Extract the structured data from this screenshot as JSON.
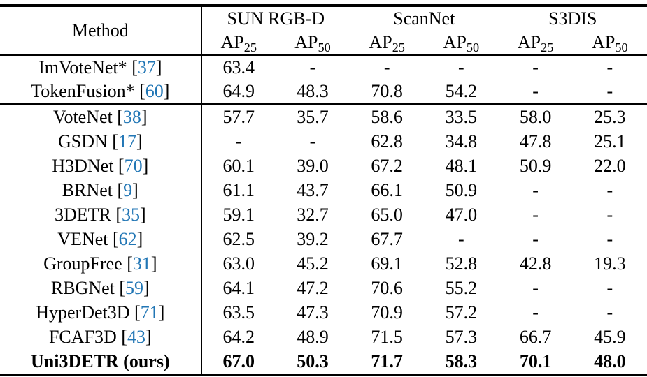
{
  "table": {
    "method_header": "Method",
    "cite_open": "[",
    "cite_close": "]",
    "link_color": "#2176b5",
    "groups": [
      {
        "label": "SUN RGB-D"
      },
      {
        "label": "ScanNet"
      },
      {
        "label": "S3DIS"
      }
    ],
    "metric_label": "AP",
    "metric_subs": [
      "25",
      "50",
      "25",
      "50",
      "25",
      "50"
    ],
    "section_top": [
      {
        "method": "ImVoteNet*",
        "cite": "37",
        "values": [
          "63.4",
          "-",
          "-",
          "-",
          "-",
          "-"
        ]
      },
      {
        "method": "TokenFusion*",
        "cite": "60",
        "values": [
          "64.9",
          "48.3",
          "70.8",
          "54.2",
          "-",
          "-"
        ]
      }
    ],
    "section_main": [
      {
        "method": "VoteNet",
        "cite": "38",
        "values": [
          "57.7",
          "35.7",
          "58.6",
          "33.5",
          "58.0",
          "25.3"
        ]
      },
      {
        "method": "GSDN",
        "cite": "17",
        "values": [
          "-",
          "-",
          "62.8",
          "34.8",
          "47.8",
          "25.1"
        ]
      },
      {
        "method": "H3DNet",
        "cite": "70",
        "values": [
          "60.1",
          "39.0",
          "67.2",
          "48.1",
          "50.9",
          "22.0"
        ]
      },
      {
        "method": "BRNet",
        "cite": "9",
        "values": [
          "61.1",
          "43.7",
          "66.1",
          "50.9",
          "-",
          "-"
        ]
      },
      {
        "method": "3DETR",
        "cite": "35",
        "values": [
          "59.1",
          "32.7",
          "65.0",
          "47.0",
          "-",
          "-"
        ]
      },
      {
        "method": "VENet",
        "cite": "62",
        "values": [
          "62.5",
          "39.2",
          "67.7",
          "-",
          "-",
          "-"
        ]
      },
      {
        "method": "GroupFree",
        "cite": "31",
        "values": [
          "63.0",
          "45.2",
          "69.1",
          "52.8",
          "42.8",
          "19.3"
        ]
      },
      {
        "method": "RBGNet",
        "cite": "59",
        "values": [
          "64.1",
          "47.2",
          "70.6",
          "55.2",
          "-",
          "-"
        ]
      },
      {
        "method": "HyperDet3D",
        "cite": "71",
        "values": [
          "63.5",
          "47.3",
          "70.9",
          "57.2",
          "-",
          "-"
        ]
      },
      {
        "method": "FCAF3D",
        "cite": "43",
        "values": [
          "64.2",
          "48.9",
          "71.5",
          "57.3",
          "66.7",
          "45.9"
        ]
      },
      {
        "method": "Uni3DETR (ours)",
        "cite": null,
        "bold": true,
        "values": [
          "67.0",
          "50.3",
          "71.7",
          "58.3",
          "70.1",
          "48.0"
        ]
      }
    ]
  }
}
